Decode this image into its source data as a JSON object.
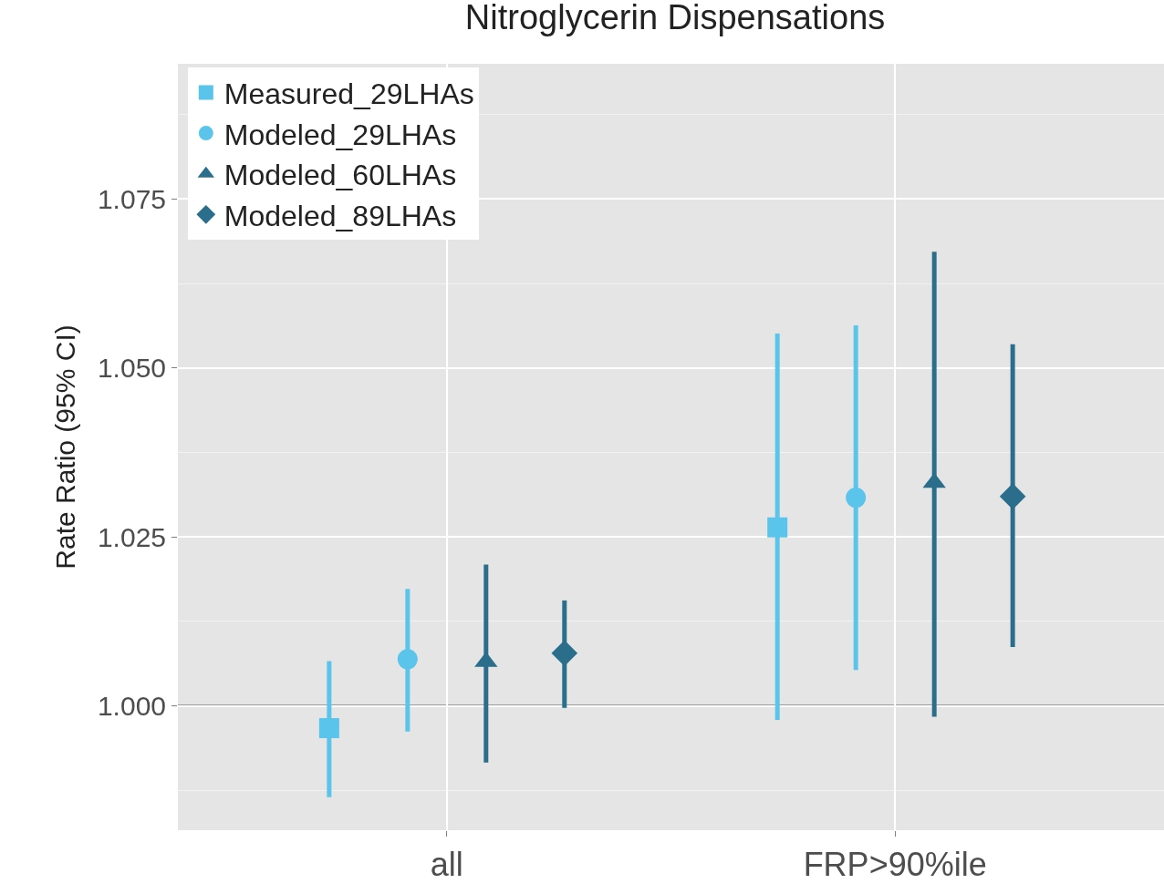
{
  "chart_data": {
    "type": "scatter",
    "title": "Nitroglycerin Dispensations",
    "ylabel": "Rate Ratio (95% CI)",
    "categories": [
      "all",
      "FRP>90%ile"
    ],
    "series": [
      {
        "name": "Measured_29LHAs",
        "color": "#5bc4ea",
        "marker": "square",
        "values": [
          0.9967,
          1.0264
        ],
        "errors": [
          [
            0.9865,
            1.0066
          ],
          [
            0.9979,
            1.0551
          ]
        ]
      },
      {
        "name": "Modeled_29LHAs",
        "color": "#5bc4ea",
        "marker": "circle",
        "values": [
          1.0069,
          1.0308
        ],
        "errors": [
          [
            0.9962,
            1.0173
          ],
          [
            1.0053,
            1.0563
          ]
        ]
      },
      {
        "name": "Modeled_60LHAs",
        "color": "#2a6e8c",
        "marker": "triangle",
        "values": [
          1.0065,
          1.033
        ],
        "errors": [
          [
            0.9916,
            1.0209
          ],
          [
            0.9984,
            1.0672
          ]
        ]
      },
      {
        "name": "Modeled_89LHAs",
        "color": "#2a6e8c",
        "marker": "diamond",
        "values": [
          1.0078,
          1.031
        ],
        "errors": [
          [
            0.9997,
            1.0156
          ],
          [
            1.0087,
            1.0535
          ]
        ]
      }
    ],
    "ylim": [
      0.9816,
      1.095
    ],
    "yticks": [
      {
        "value": 1.0,
        "label": "1.000"
      },
      {
        "value": 1.025,
        "label": "1.025"
      },
      {
        "value": 1.05,
        "label": "1.050"
      },
      {
        "value": 1.075,
        "label": "1.075"
      }
    ],
    "ref_lines": [
      {
        "axis": "y",
        "value": 1.0,
        "color": "#555555"
      }
    ],
    "grid": true,
    "legend": "top left"
  }
}
